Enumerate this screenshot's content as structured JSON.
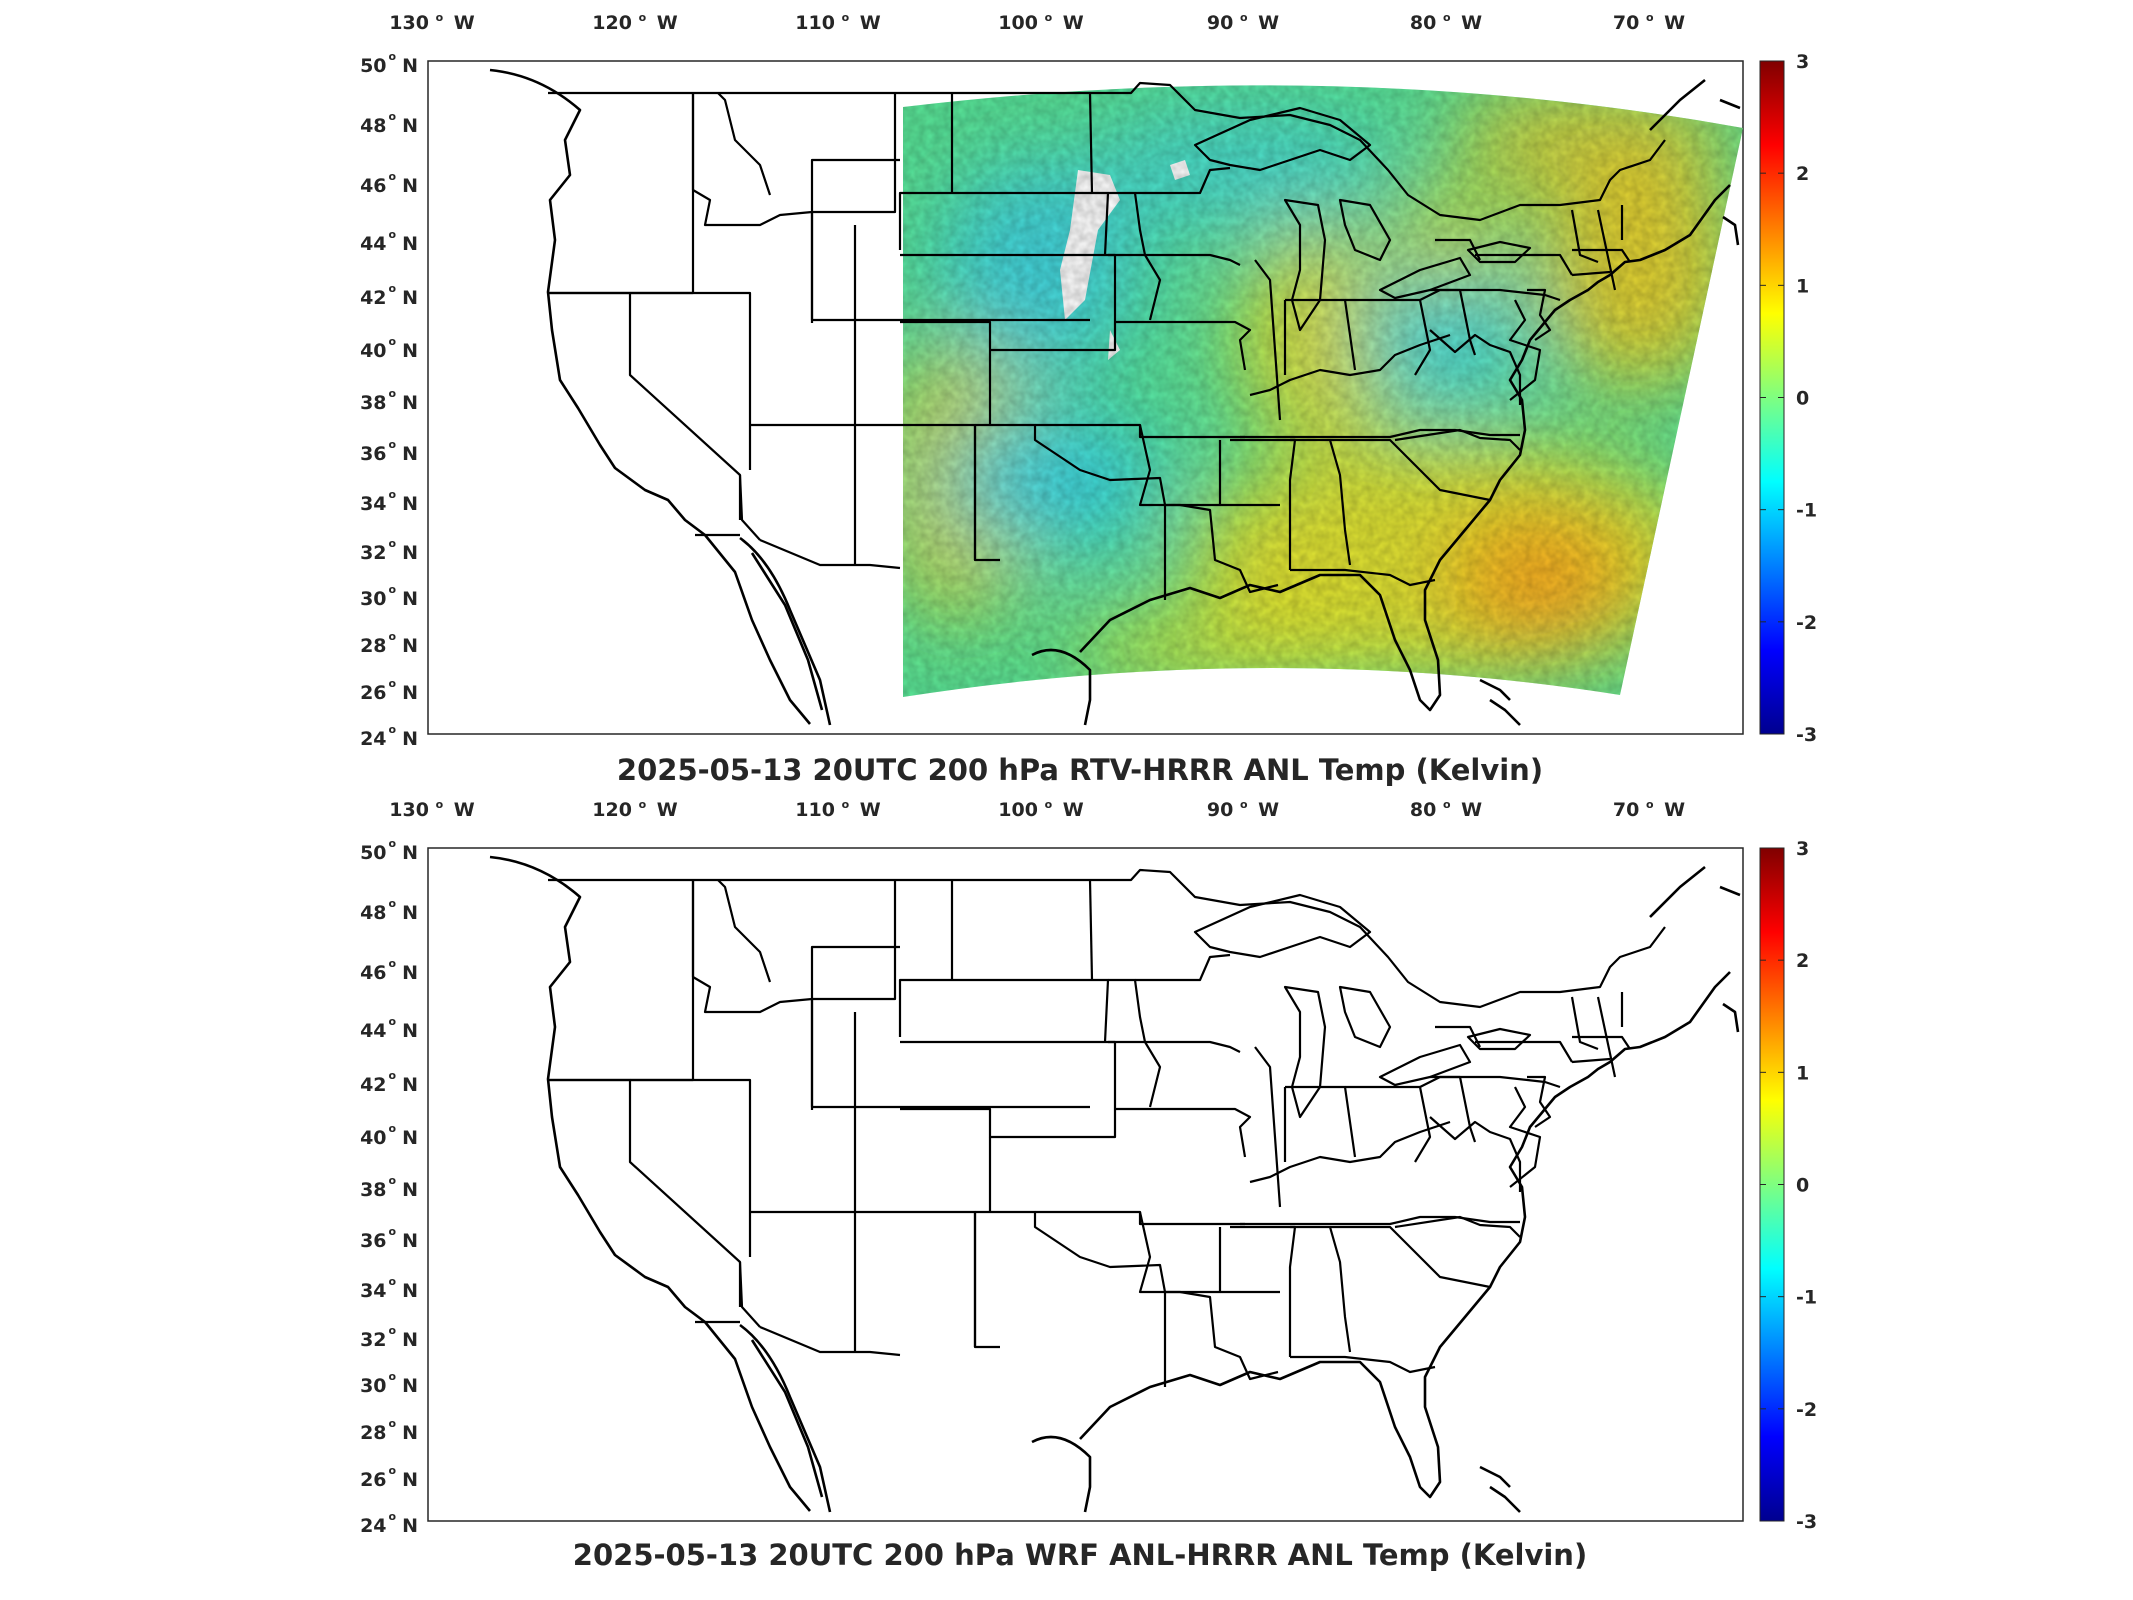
{
  "panels": [
    {
      "id": "top",
      "title": "2025-05-13 20UTC 200 hPa RTV-HRRR ANL Temp (Kelvin)",
      "domain": "east"
    },
    {
      "id": "bottom",
      "title": "2025-05-13 20UTC 200 hPa WRF ANL-HRRR ANL Temp (Kelvin)",
      "domain": "full"
    }
  ],
  "lon_ticks": [
    "130",
    "120",
    "110",
    "100",
    "90",
    "80",
    "70"
  ],
  "lon_suffix": "W",
  "lat_ticks": [
    "50",
    "48",
    "46",
    "44",
    "42",
    "40",
    "38",
    "36",
    "34",
    "32",
    "30",
    "28",
    "26",
    "24"
  ],
  "lat_suffix": "N",
  "colorbar": {
    "colormap": "jet",
    "ticks": [
      "3",
      "2",
      "1",
      "0",
      "-1",
      "-2",
      "-3"
    ],
    "range": [
      -3,
      3
    ]
  },
  "colors": {
    "field_base": "#58e89a",
    "warm": "#f5e62a",
    "cool": "#35d8f0",
    "hot": "#ff8a1e"
  }
}
